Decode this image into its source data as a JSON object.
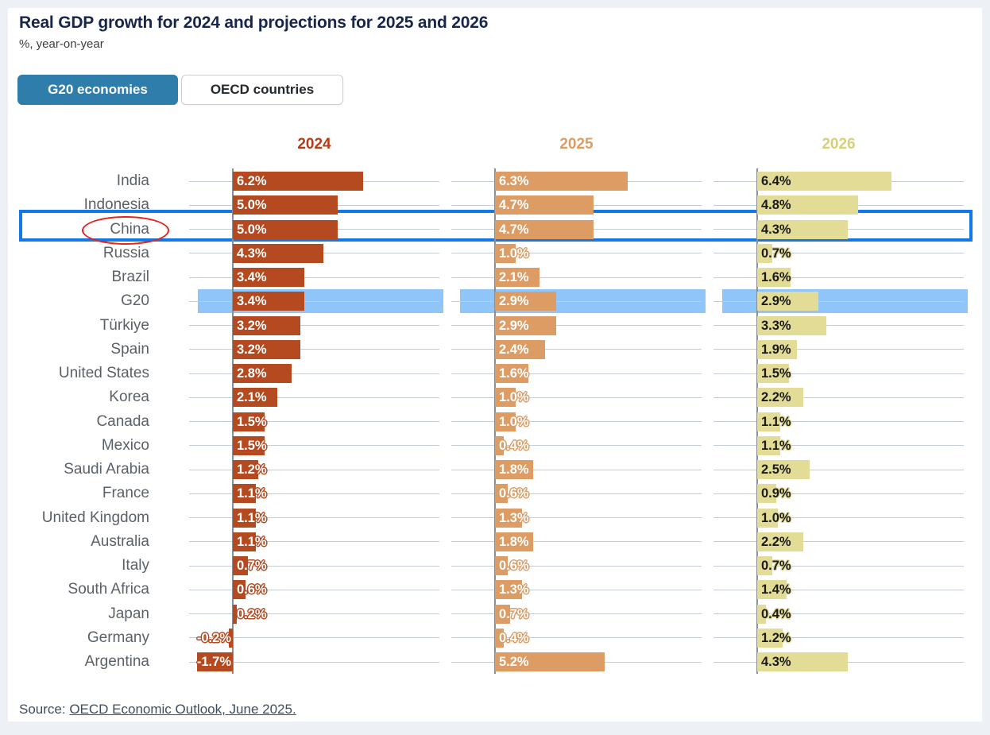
{
  "header": {
    "title": "Real GDP growth for 2024 and projections for 2025 and 2026",
    "subtitle": "%, year-on-year"
  },
  "tabs": [
    {
      "label": "G20 economies",
      "active": true
    },
    {
      "label": "OECD countries",
      "active": false
    }
  ],
  "source": {
    "prefix": "Source: ",
    "link_text": "OECD Economic Outlook, June 2025."
  },
  "chart_data": {
    "type": "bar",
    "orientation": "horizontal",
    "title": "Real GDP growth for 2024 and projections for 2025 and 2026",
    "unit": "%, year-on-year",
    "value_suffix": "%",
    "grid": true,
    "xlim_per_column": [
      -2,
      8
    ],
    "categories": [
      "India",
      "Indonesia",
      "China",
      "Russia",
      "Brazil",
      "G20",
      "Türkiye",
      "Spain",
      "United States",
      "Korea",
      "Canada",
      "Mexico",
      "Saudi Arabia",
      "France",
      "United Kingdom",
      "Australia",
      "Italy",
      "South Africa",
      "Japan",
      "Germany",
      "Argentina"
    ],
    "series": [
      {
        "name": "2024",
        "color": "#b5491f",
        "header_color": "#b23c17",
        "label_color": "#ffffff",
        "values": [
          6.2,
          5.0,
          5.0,
          4.3,
          3.4,
          3.4,
          3.2,
          3.2,
          2.8,
          2.1,
          1.5,
          1.5,
          1.2,
          1.1,
          1.1,
          1.1,
          0.7,
          0.6,
          0.2,
          -0.2,
          -1.7
        ]
      },
      {
        "name": "2025",
        "color": "#dd9c64",
        "header_color": "#dd9c64",
        "label_color": "#ffffff",
        "values": [
          6.3,
          4.7,
          4.7,
          1.0,
          2.1,
          2.9,
          2.9,
          2.4,
          1.6,
          1.0,
          1.0,
          0.4,
          1.8,
          0.6,
          1.3,
          1.8,
          0.6,
          1.3,
          0.7,
          0.4,
          5.2
        ]
      },
      {
        "name": "2026",
        "color": "#e3dc96",
        "header_color": "#d8d077",
        "label_color": "#1a1a1a",
        "values": [
          6.4,
          4.8,
          4.3,
          0.7,
          1.6,
          2.9,
          3.3,
          1.9,
          1.5,
          2.2,
          1.1,
          1.1,
          2.5,
          0.9,
          1.0,
          2.2,
          0.7,
          1.4,
          0.4,
          1.2,
          4.3
        ]
      }
    ],
    "highlights": {
      "outlined_row": "China",
      "circled_label": "China",
      "shaded_row": "G20",
      "outline_color": "#1277e8",
      "circle_color": "#e6201b",
      "band_color": "#8fc5f8"
    }
  }
}
